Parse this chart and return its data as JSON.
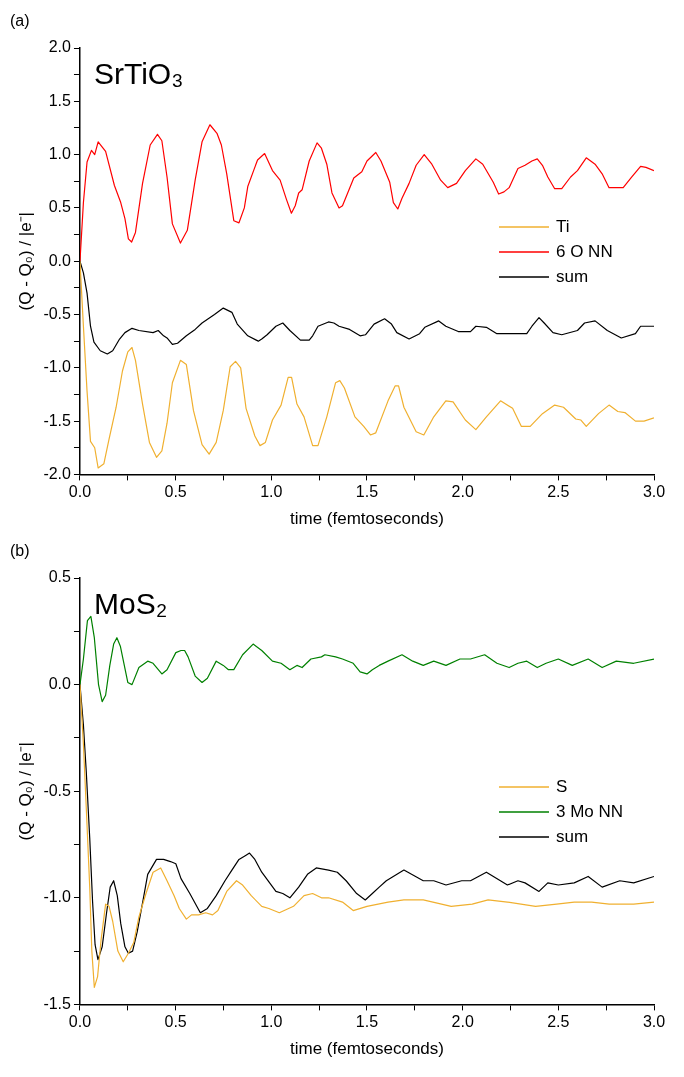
{
  "chart_data": [
    {
      "type": "line",
      "title": "SrTiO₃",
      "annotations": [
        "(a)"
      ],
      "xlabel": "time (femtoseconds)",
      "ylabel": "(Q - Q₀) / |e⁻|",
      "xlim": [
        0,
        3
      ],
      "xticks": [
        {
          "value": 0,
          "label": "0.0"
        },
        {
          "value": 0.25,
          "label": null
        },
        {
          "value": 0.5,
          "label": "0.5"
        },
        {
          "value": 0.75,
          "label": null
        },
        {
          "value": 1,
          "label": "1.0"
        },
        {
          "value": 1.25,
          "label": null
        },
        {
          "value": 1.5,
          "label": "1.5"
        },
        {
          "value": 1.75,
          "label": null
        },
        {
          "value": 2,
          "label": "2.0"
        },
        {
          "value": 2.25,
          "label": null
        },
        {
          "value": 2.5,
          "label": "2.5"
        },
        {
          "value": 2.75,
          "label": null
        },
        {
          "value": 3,
          "label": "3.0"
        }
      ],
      "ylim": [
        -2,
        2
      ],
      "yticks": [
        {
          "value": -2,
          "label": "-2.0"
        },
        {
          "value": -1.75,
          "label": null
        },
        {
          "value": -1.5,
          "label": "-1.5"
        },
        {
          "value": -1.25,
          "label": null
        },
        {
          "value": -1,
          "label": "-1.0"
        },
        {
          "value": -0.75,
          "label": null
        },
        {
          "value": -0.5,
          "label": "-0.5"
        },
        {
          "value": -0.25,
          "label": null
        },
        {
          "value": 0,
          "label": "0.0"
        },
        {
          "value": 0.25,
          "label": null
        },
        {
          "value": 0.5,
          "label": "0.5"
        },
        {
          "value": 0.75,
          "label": null
        },
        {
          "value": 1,
          "label": "1.0"
        },
        {
          "value": 1.25,
          "label": null
        },
        {
          "value": 1.5,
          "label": "1.5"
        },
        {
          "value": 1.75,
          "label": null
        },
        {
          "value": 2,
          "label": "2.0"
        }
      ],
      "grid": false,
      "legend": "right",
      "series": [
        {
          "name": "Ti",
          "color": "#f0b030",
          "x": [
            0,
            0.018,
            0.037,
            0.055,
            0.077,
            0.095,
            0.125,
            0.152,
            0.189,
            0.222,
            0.25,
            0.272,
            0.29,
            0.327,
            0.363,
            0.4,
            0.428,
            0.455,
            0.483,
            0.525,
            0.556,
            0.593,
            0.638,
            0.675,
            0.712,
            0.749,
            0.785,
            0.813,
            0.84,
            0.868,
            0.914,
            0.941,
            0.969,
            1.006,
            1.051,
            1.088,
            1.106,
            1.134,
            1.171,
            1.216,
            1.244,
            1.29,
            1.336,
            1.358,
            1.382,
            1.437,
            1.483,
            1.518,
            1.546,
            1.61,
            1.647,
            1.665,
            1.693,
            1.757,
            1.797,
            1.849,
            1.912,
            1.95,
            2.014,
            2.069,
            2.124,
            2.198,
            2.261,
            2.307,
            2.353,
            2.417,
            2.481,
            2.527,
            2.591,
            2.618,
            2.646,
            2.71,
            2.765,
            2.811,
            2.848,
            2.903,
            2.948,
            3
          ],
          "values": [
            0,
            -0.61,
            -1.22,
            -1.69,
            -1.75,
            -1.94,
            -1.9,
            -1.67,
            -1.37,
            -1.03,
            -0.85,
            -0.81,
            -0.93,
            -1.34,
            -1.7,
            -1.84,
            -1.78,
            -1.52,
            -1.14,
            -0.93,
            -0.97,
            -1.4,
            -1.72,
            -1.81,
            -1.7,
            -1.4,
            -0.99,
            -0.94,
            -1,
            -1.38,
            -1.64,
            -1.73,
            -1.7,
            -1.49,
            -1.35,
            -1.09,
            -1.09,
            -1.34,
            -1.46,
            -1.73,
            -1.73,
            -1.46,
            -1.14,
            -1.12,
            -1.19,
            -1.46,
            -1.55,
            -1.63,
            -1.61,
            -1.31,
            -1.17,
            -1.17,
            -1.37,
            -1.6,
            -1.63,
            -1.46,
            -1.31,
            -1.32,
            -1.49,
            -1.58,
            -1.46,
            -1.31,
            -1.38,
            -1.55,
            -1.55,
            -1.43,
            -1.35,
            -1.37,
            -1.48,
            -1.49,
            -1.55,
            -1.43,
            -1.35,
            -1.41,
            -1.42,
            -1.5,
            -1.5,
            -1.47
          ]
        },
        {
          "name": "6 O NN",
          "color": "#ff0000",
          "x": [
            0,
            0.018,
            0.037,
            0.06,
            0.077,
            0.095,
            0.134,
            0.18,
            0.213,
            0.235,
            0.253,
            0.27,
            0.29,
            0.327,
            0.367,
            0.405,
            0.428,
            0.455,
            0.483,
            0.525,
            0.561,
            0.602,
            0.638,
            0.679,
            0.716,
            0.739,
            0.767,
            0.804,
            0.831,
            0.859,
            0.877,
            0.928,
            0.965,
            1.006,
            1.046,
            1.079,
            1.105,
            1.125,
            1.143,
            1.161,
            1.198,
            1.239,
            1.262,
            1.29,
            1.317,
            1.354,
            1.372,
            1.431,
            1.473,
            1.5,
            1.546,
            1.573,
            1.619,
            1.638,
            1.661,
            1.683,
            1.72,
            1.757,
            1.799,
            1.839,
            1.885,
            1.922,
            1.968,
            2.014,
            2.069,
            2.105,
            2.16,
            2.188,
            2.216,
            2.243,
            2.289,
            2.326,
            2.362,
            2.39,
            2.417,
            2.445,
            2.481,
            2.518,
            2.564,
            2.6,
            2.646,
            2.692,
            2.729,
            2.765,
            2.839,
            2.884,
            2.93,
            2.958,
            3
          ],
          "values": [
            0,
            0.55,
            0.93,
            1.04,
            1,
            1.12,
            1.03,
            0.71,
            0.55,
            0.4,
            0.21,
            0.18,
            0.27,
            0.73,
            1.09,
            1.19,
            1.13,
            0.79,
            0.35,
            0.17,
            0.29,
            0.76,
            1.12,
            1.28,
            1.2,
            1.09,
            0.82,
            0.38,
            0.36,
            0.5,
            0.7,
            0.95,
            1.01,
            0.85,
            0.76,
            0.58,
            0.45,
            0.52,
            0.64,
            0.67,
            0.94,
            1.11,
            1.06,
            0.91,
            0.64,
            0.5,
            0.52,
            0.78,
            0.84,
            0.94,
            1.02,
            0.94,
            0.74,
            0.55,
            0.49,
            0.59,
            0.73,
            0.9,
            1,
            0.91,
            0.76,
            0.69,
            0.73,
            0.85,
            0.96,
            0.91,
            0.74,
            0.63,
            0.65,
            0.69,
            0.87,
            0.9,
            0.94,
            0.96,
            0.9,
            0.79,
            0.68,
            0.68,
            0.79,
            0.85,
            0.97,
            0.91,
            0.82,
            0.69,
            0.69,
            0.79,
            0.89,
            0.88,
            0.85
          ]
        },
        {
          "name": "sum",
          "color": "#000000",
          "x": [
            0,
            0.018,
            0.037,
            0.055,
            0.073,
            0.106,
            0.143,
            0.171,
            0.207,
            0.235,
            0.272,
            0.308,
            0.382,
            0.409,
            0.437,
            0.455,
            0.483,
            0.51,
            0.556,
            0.602,
            0.638,
            0.703,
            0.749,
            0.794,
            0.822,
            0.877,
            0.932,
            0.95,
            0.978,
            1.024,
            1.06,
            1.097,
            1.152,
            1.198,
            1.216,
            1.244,
            1.299,
            1.327,
            1.354,
            1.409,
            1.464,
            1.492,
            1.537,
            1.592,
            1.628,
            1.656,
            1.72,
            1.775,
            1.802,
            1.875,
            1.912,
            1.977,
            2.041,
            2.069,
            2.124,
            2.179,
            2.335,
            2.362,
            2.399,
            2.426,
            2.472,
            2.518,
            2.6,
            2.637,
            2.692,
            2.756,
            2.829,
            2.903,
            2.93,
            3
          ],
          "values": [
            0,
            -0.11,
            -0.3,
            -0.61,
            -0.76,
            -0.84,
            -0.87,
            -0.84,
            -0.73,
            -0.67,
            -0.63,
            -0.65,
            -0.67,
            -0.65,
            -0.7,
            -0.72,
            -0.78,
            -0.77,
            -0.7,
            -0.64,
            -0.58,
            -0.5,
            -0.44,
            -0.48,
            -0.59,
            -0.7,
            -0.75,
            -0.73,
            -0.69,
            -0.61,
            -0.58,
            -0.65,
            -0.74,
            -0.74,
            -0.7,
            -0.61,
            -0.57,
            -0.58,
            -0.61,
            -0.64,
            -0.7,
            -0.69,
            -0.59,
            -0.54,
            -0.59,
            -0.67,
            -0.73,
            -0.68,
            -0.62,
            -0.56,
            -0.61,
            -0.66,
            -0.66,
            -0.61,
            -0.62,
            -0.68,
            -0.68,
            -0.61,
            -0.53,
            -0.58,
            -0.67,
            -0.69,
            -0.65,
            -0.58,
            -0.56,
            -0.65,
            -0.72,
            -0.68,
            -0.61,
            -0.61
          ]
        }
      ]
    },
    {
      "type": "line",
      "title": "MoS₂",
      "annotations": [
        "(b)"
      ],
      "xlabel": "time (femtoseconds)",
      "ylabel": "(Q - Q₀) / |e⁻|",
      "xlim": [
        0,
        3
      ],
      "xticks": [
        {
          "value": 0,
          "label": "0.0"
        },
        {
          "value": 0.25,
          "label": null
        },
        {
          "value": 0.5,
          "label": "0.5"
        },
        {
          "value": 0.75,
          "label": null
        },
        {
          "value": 1,
          "label": "1.0"
        },
        {
          "value": 1.25,
          "label": null
        },
        {
          "value": 1.5,
          "label": "1.5"
        },
        {
          "value": 1.75,
          "label": null
        },
        {
          "value": 2,
          "label": "2.0"
        },
        {
          "value": 2.25,
          "label": null
        },
        {
          "value": 2.5,
          "label": "2.5"
        },
        {
          "value": 2.75,
          "label": null
        },
        {
          "value": 3,
          "label": "3.0"
        }
      ],
      "ylim": [
        -1.5,
        0.5
      ],
      "yticks": [
        {
          "value": -1.5,
          "label": "-1.5"
        },
        {
          "value": -1.25,
          "label": null
        },
        {
          "value": -1,
          "label": "-1.0"
        },
        {
          "value": -0.75,
          "label": null
        },
        {
          "value": -0.5,
          "label": "-0.5"
        },
        {
          "value": -0.25,
          "label": null
        },
        {
          "value": 0,
          "label": "0.0"
        },
        {
          "value": 0.25,
          "label": null
        },
        {
          "value": 0.5,
          "label": "0.5"
        }
      ],
      "grid": false,
      "legend": "right",
      "series": [
        {
          "name": "S",
          "color": "#f0b030",
          "x": [
            0,
            0.018,
            0.033,
            0.051,
            0.062,
            0.075,
            0.092,
            0.11,
            0.134,
            0.152,
            0.171,
            0.198,
            0.226,
            0.253,
            0.281,
            0.308,
            0.345,
            0.382,
            0.422,
            0.455,
            0.492,
            0.519,
            0.556,
            0.583,
            0.62,
            0.657,
            0.693,
            0.721,
            0.767,
            0.818,
            0.85,
            0.895,
            0.95,
            0.987,
            1.042,
            1.116,
            1.171,
            1.216,
            1.262,
            1.299,
            1.372,
            1.428,
            1.5,
            1.61,
            1.693,
            1.794,
            1.94,
            2.05,
            2.133,
            2.234,
            2.381,
            2.491,
            2.583,
            2.674,
            2.766,
            2.894,
            3
          ],
          "values": [
            0,
            -0.28,
            -0.58,
            -0.95,
            -1.25,
            -1.42,
            -1.37,
            -1.2,
            -1.03,
            -1.04,
            -1.11,
            -1.25,
            -1.3,
            -1.26,
            -1.21,
            -1.09,
            -0.98,
            -0.88,
            -0.86,
            -0.92,
            -0.99,
            -1.05,
            -1.1,
            -1.08,
            -1.08,
            -1.07,
            -1.08,
            -1.06,
            -0.97,
            -0.92,
            -0.94,
            -0.99,
            -1.04,
            -1.05,
            -1.07,
            -1.04,
            -0.99,
            -0.98,
            -1,
            -1,
            -1.02,
            -1.06,
            -1.04,
            -1.02,
            -1.01,
            -1.01,
            -1.04,
            -1.03,
            -1.01,
            -1.02,
            -1.04,
            -1.03,
            -1.02,
            -1.02,
            -1.03,
            -1.03,
            -1.02
          ]
        },
        {
          "name": "3 Mo NN",
          "color": "#008000",
          "x": [
            0,
            0.018,
            0.039,
            0.057,
            0.075,
            0.097,
            0.116,
            0.134,
            0.156,
            0.176,
            0.193,
            0.211,
            0.25,
            0.272,
            0.308,
            0.354,
            0.382,
            0.428,
            0.455,
            0.501,
            0.528,
            0.547,
            0.565,
            0.602,
            0.638,
            0.666,
            0.712,
            0.749,
            0.776,
            0.804,
            0.85,
            0.905,
            0.95,
            1.006,
            1.051,
            1.097,
            1.134,
            1.161,
            1.207,
            1.262,
            1.28,
            1.336,
            1.372,
            1.428,
            1.464,
            1.5,
            1.528,
            1.564,
            1.61,
            1.683,
            1.739,
            1.794,
            1.849,
            1.913,
            1.986,
            2.041,
            2.115,
            2.179,
            2.243,
            2.289,
            2.335,
            2.39,
            2.436,
            2.5,
            2.573,
            2.656,
            2.729,
            2.803,
            2.894,
            3
          ],
          "values": [
            0,
            0.12,
            0.3,
            0.32,
            0.22,
            0,
            -0.08,
            -0.05,
            0.09,
            0.19,
            0.22,
            0.18,
            0.01,
            0,
            0.08,
            0.11,
            0.1,
            0.05,
            0.07,
            0.15,
            0.16,
            0.16,
            0.13,
            0.04,
            0.01,
            0.03,
            0.11,
            0.09,
            0.07,
            0.07,
            0.14,
            0.19,
            0.16,
            0.11,
            0.1,
            0.07,
            0.09,
            0.08,
            0.12,
            0.13,
            0.14,
            0.13,
            0.12,
            0.1,
            0.06,
            0.05,
            0.07,
            0.09,
            0.11,
            0.14,
            0.11,
            0.09,
            0.11,
            0.09,
            0.12,
            0.12,
            0.14,
            0.1,
            0.08,
            0.1,
            0.11,
            0.08,
            0.1,
            0.12,
            0.09,
            0.12,
            0.08,
            0.11,
            0.1,
            0.12
          ]
        },
        {
          "name": "sum",
          "color": "#000000",
          "x": [
            0,
            0.018,
            0.033,
            0.051,
            0.066,
            0.079,
            0.094,
            0.116,
            0.139,
            0.158,
            0.176,
            0.195,
            0.213,
            0.235,
            0.253,
            0.275,
            0.299,
            0.33,
            0.354,
            0.4,
            0.437,
            0.473,
            0.501,
            0.528,
            0.574,
            0.629,
            0.666,
            0.712,
            0.758,
            0.794,
            0.831,
            0.868,
            0.886,
            0.914,
            0.95,
            1.024,
            1.06,
            1.097,
            1.143,
            1.189,
            1.235,
            1.299,
            1.345,
            1.391,
            1.446,
            1.491,
            1.528,
            1.564,
            1.601,
            1.693,
            1.794,
            1.849,
            1.913,
            1.995,
            2.041,
            2.124,
            2.234,
            2.289,
            2.326,
            2.399,
            2.445,
            2.5,
            2.583,
            2.656,
            2.729,
            2.821,
            2.894,
            3
          ],
          "values": [
            0,
            -0.19,
            -0.41,
            -0.72,
            -1.02,
            -1.22,
            -1.29,
            -1.23,
            -1.07,
            -0.95,
            -0.92,
            -0.99,
            -1.12,
            -1.23,
            -1.26,
            -1.25,
            -1.16,
            -1.01,
            -0.89,
            -0.82,
            -0.82,
            -0.83,
            -0.84,
            -0.91,
            -0.98,
            -1.07,
            -1.05,
            -0.99,
            -0.92,
            -0.87,
            -0.82,
            -0.8,
            -0.79,
            -0.82,
            -0.88,
            -0.97,
            -0.98,
            -1,
            -0.95,
            -0.89,
            -0.86,
            -0.87,
            -0.88,
            -0.92,
            -0.98,
            -1.01,
            -0.98,
            -0.95,
            -0.92,
            -0.87,
            -0.92,
            -0.92,
            -0.94,
            -0.92,
            -0.92,
            -0.88,
            -0.94,
            -0.92,
            -0.93,
            -0.97,
            -0.93,
            -0.94,
            -0.93,
            -0.9,
            -0.95,
            -0.92,
            -0.93,
            -0.9
          ]
        }
      ]
    }
  ]
}
